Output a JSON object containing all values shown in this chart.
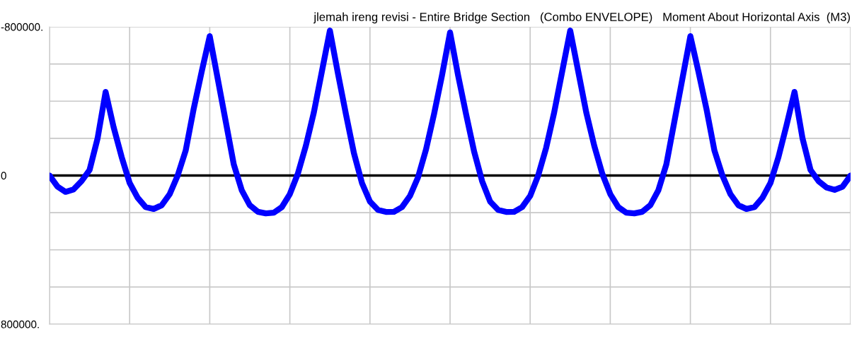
{
  "chart_data": {
    "type": "line",
    "title": "jlemah ireng revisi - Entire Bridge Section   (Combo ENVELOPE)   Moment About Horizontal Axis  (M3)",
    "categories": [
      null,
      null,
      null,
      null,
      null,
      null,
      null,
      null,
      null,
      null,
      null,
      null,
      null,
      null,
      null,
      null,
      null,
      null,
      null,
      null,
      null,
      null,
      null,
      null,
      null,
      null,
      null,
      null,
      null,
      null,
      null,
      null,
      null,
      null,
      null,
      null,
      null,
      null,
      null,
      null,
      null,
      null,
      null,
      null,
      null,
      null,
      null,
      null,
      null,
      null,
      null,
      null,
      null,
      null,
      null,
      null,
      null,
      null,
      null,
      null,
      null,
      null,
      null,
      null,
      null,
      null,
      null,
      null,
      null,
      null,
      null,
      null,
      null,
      null,
      null,
      null,
      null,
      null,
      null,
      null,
      null,
      null,
      null,
      null,
      null,
      null,
      null,
      null,
      null,
      null,
      null,
      null,
      null,
      null,
      null,
      null,
      null,
      null,
      null,
      null,
      null
    ],
    "series": [
      {
        "color": "#0000ff",
        "values": [
          0,
          60000,
          88000,
          75000,
          30000,
          -30000,
          -200000,
          -450000,
          -260000,
          -100000,
          40000,
          120000,
          170000,
          180000,
          160000,
          100000,
          0,
          -135000,
          -360000,
          -560000,
          -750000,
          -520000,
          -290000,
          -60000,
          80000,
          160000,
          195000,
          204000,
          200000,
          170000,
          100000,
          -10000,
          -160000,
          -340000,
          -560000,
          -780000,
          -550000,
          -330000,
          -120000,
          40000,
          140000,
          185000,
          196000,
          195000,
          170000,
          110000,
          10000,
          -140000,
          -330000,
          -540000,
          -770000,
          -540000,
          -330000,
          -130000,
          30000,
          140000,
          185000,
          196000,
          195000,
          170000,
          110000,
          0,
          -150000,
          -340000,
          -560000,
          -780000,
          -560000,
          -340000,
          -160000,
          -10000,
          100000,
          170000,
          200000,
          204000,
          195000,
          160000,
          80000,
          -60000,
          -290000,
          -520000,
          -750000,
          -560000,
          -360000,
          -135000,
          0,
          100000,
          160000,
          180000,
          170000,
          120000,
          40000,
          -100000,
          -270000,
          -450000,
          -200000,
          -30000,
          30000,
          65000,
          77000,
          60000,
          0
        ]
      }
    ],
    "ylim": [
      800000,
      -800000
    ],
    "yticks": [
      {
        "value": -800000,
        "label": "-800000."
      },
      {
        "value": -600000,
        "label": null
      },
      {
        "value": -400000,
        "label": null
      },
      {
        "value": -200000,
        "label": null
      },
      0,
      {
        "value": 200000,
        "label": null
      },
      {
        "value": 400000,
        "label": null
      },
      {
        "value": 600000,
        "label": null
      },
      {
        "value": 800000,
        "label": "800000."
      }
    ],
    "ref_lines": [
      {
        "axis": "y",
        "value": 0,
        "color": "#000000"
      }
    ],
    "grid": true,
    "tick_labels": "y"
  }
}
